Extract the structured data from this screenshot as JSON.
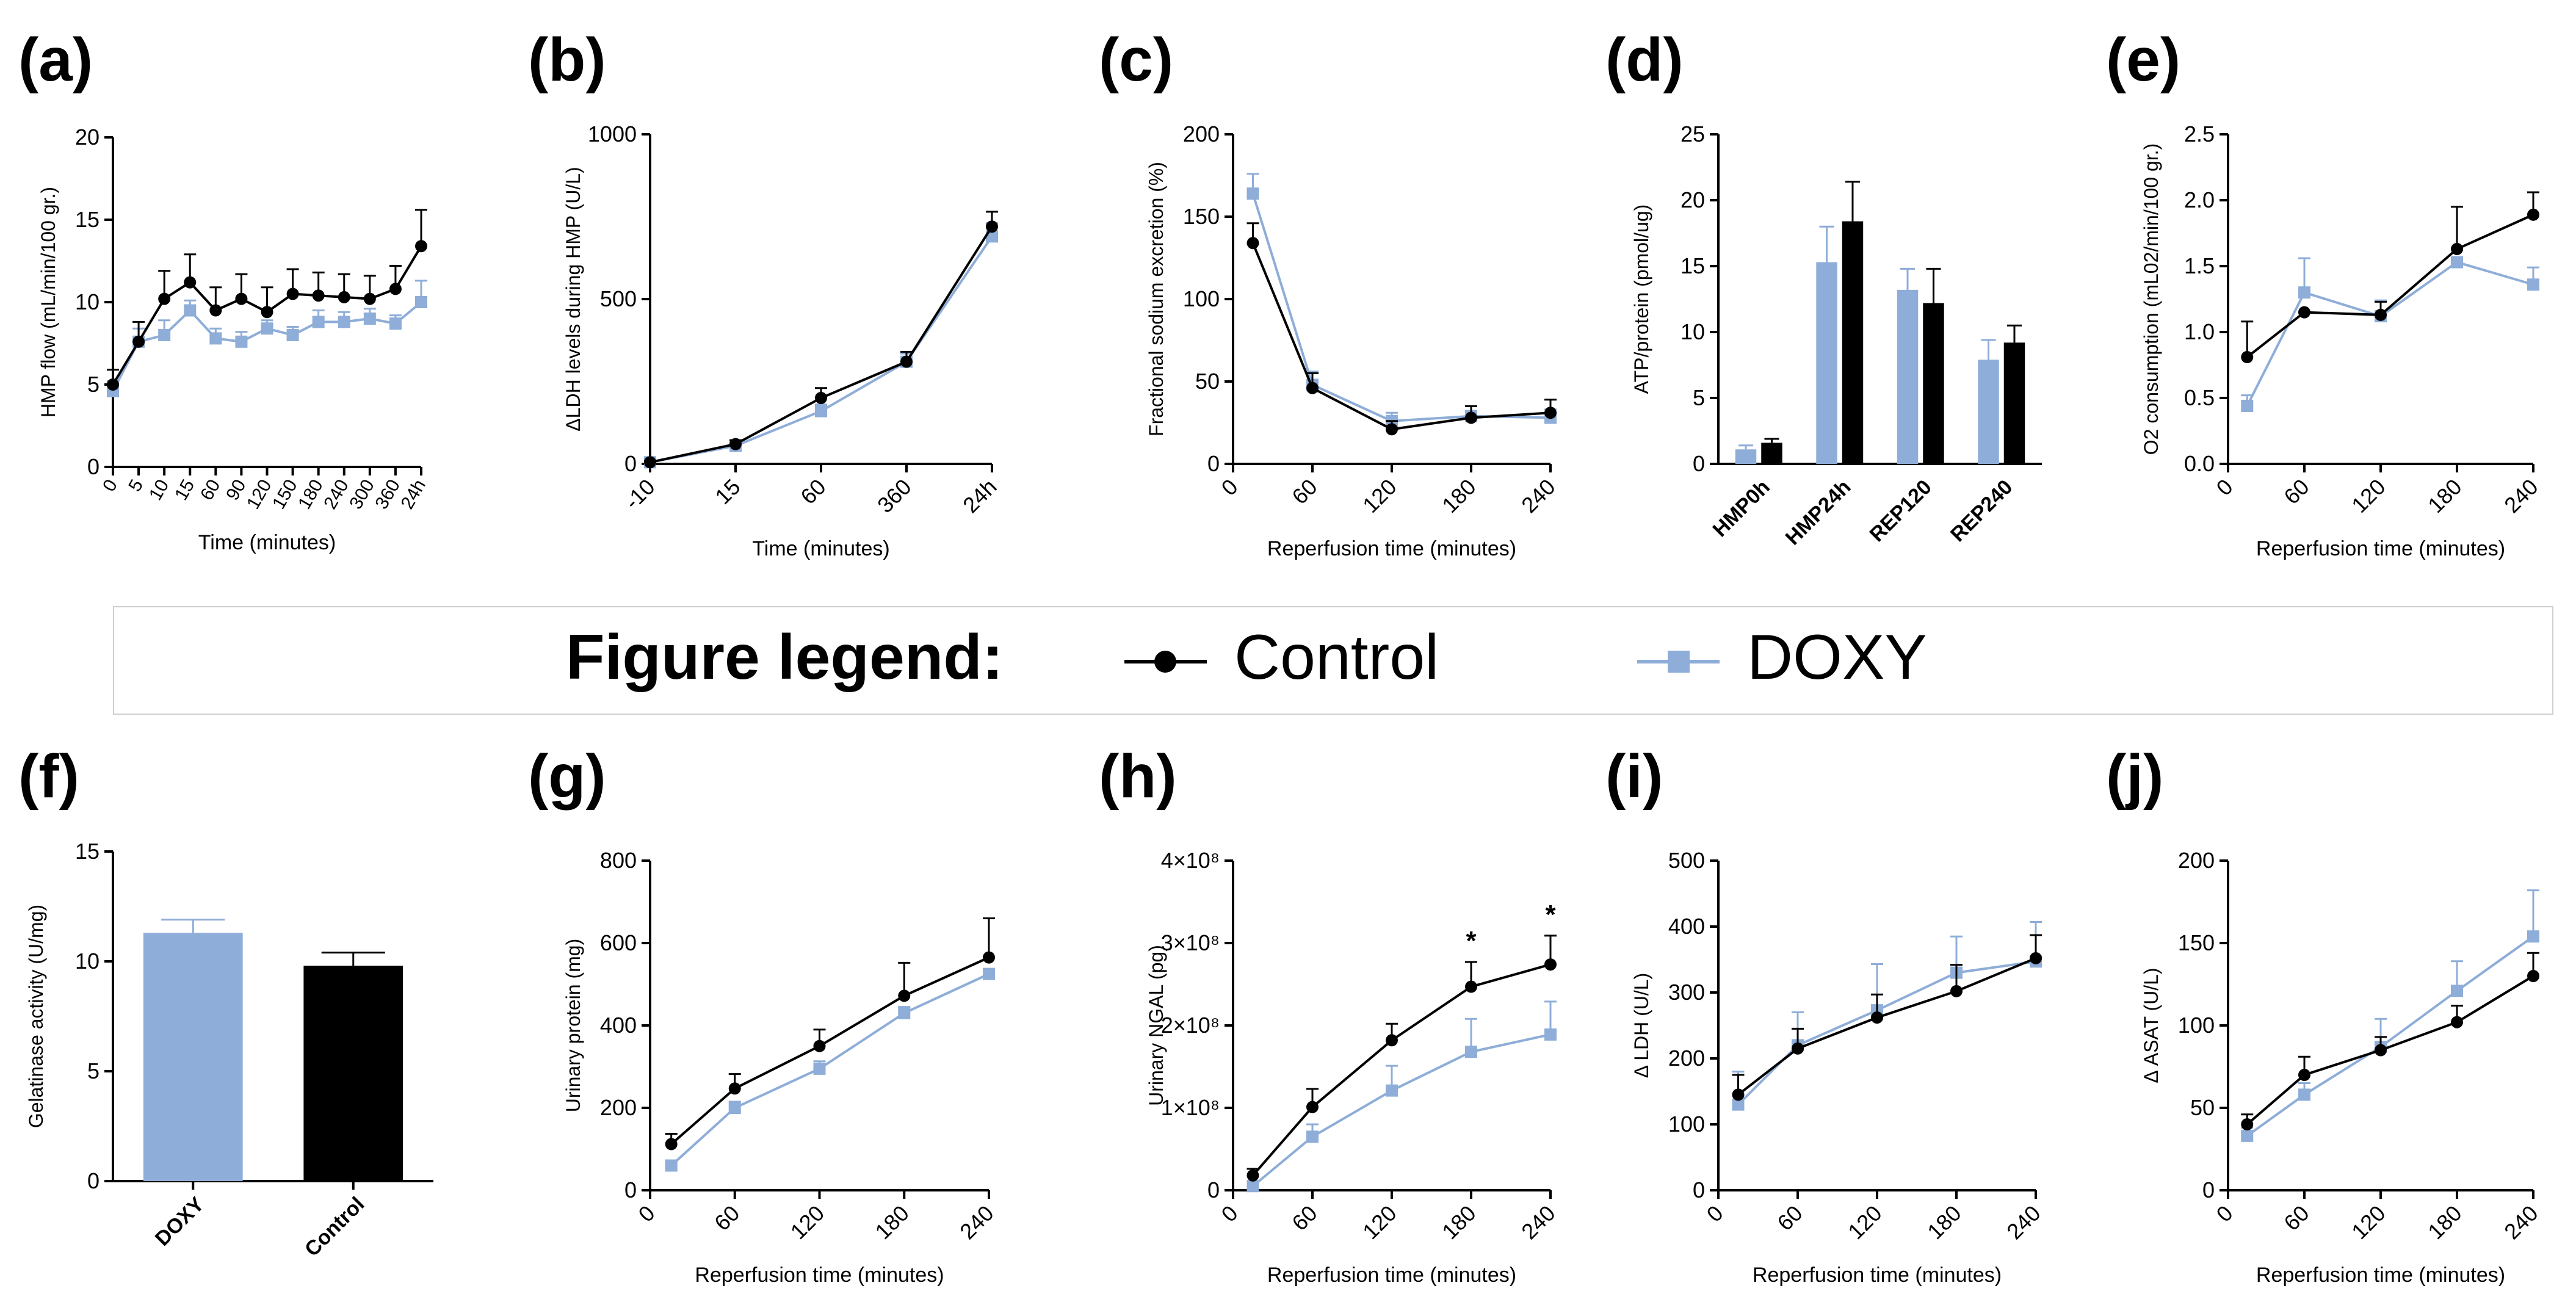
{
  "legend": {
    "title": "Figure legend:",
    "control_label": "Control",
    "doxy_label": "DOXY"
  },
  "colors": {
    "control": "#000000",
    "doxy": "#8eadd8"
  },
  "chart_data": [
    {
      "id": "a",
      "panel_label": "(a)",
      "type": "line",
      "title": "",
      "xlabel": "Time (minutes)",
      "ylabel": "HMP flow (mL/min/100 gr.)",
      "categories": [
        "0",
        "5",
        "10",
        "15",
        "60",
        "90",
        "120",
        "150",
        "180",
        "240",
        "300",
        "360",
        "24h"
      ],
      "ylim": [
        0,
        20
      ],
      "yticks": [
        0,
        5,
        10,
        15,
        20
      ],
      "series": [
        {
          "name": "Control",
          "values": [
            5.0,
            7.6,
            10.2,
            11.2,
            9.5,
            10.2,
            9.4,
            10.5,
            10.4,
            10.3,
            10.2,
            10.8,
            13.4
          ],
          "errors": [
            0.9,
            1.2,
            1.7,
            1.7,
            1.4,
            1.5,
            1.5,
            1.5,
            1.4,
            1.4,
            1.4,
            1.4,
            2.2
          ]
        },
        {
          "name": "DOXY",
          "values": [
            4.6,
            7.6,
            8.0,
            9.5,
            7.8,
            7.6,
            8.4,
            8.0,
            8.8,
            8.8,
            9.0,
            8.7,
            10.0
          ],
          "errors": [
            0.6,
            0.8,
            0.9,
            0.6,
            0.6,
            0.6,
            0.5,
            0.5,
            0.7,
            0.6,
            0.6,
            0.5,
            1.3
          ]
        }
      ]
    },
    {
      "id": "b",
      "panel_label": "(b)",
      "type": "line",
      "title": "",
      "xlabel": "Time (minutes)",
      "ylabel": "ΔLDH levels during HMP (U/L)",
      "categories": [
        "-10",
        "15",
        "60",
        "360",
        "24h"
      ],
      "ylim": [
        0,
        1000
      ],
      "yticks": [
        0,
        500,
        1000
      ],
      "series": [
        {
          "name": "Control",
          "values": [
            5,
            60,
            200,
            310,
            720
          ],
          "errors": [
            4,
            12,
            30,
            30,
            45
          ]
        },
        {
          "name": "DOXY",
          "values": [
            5,
            55,
            160,
            310,
            690
          ],
          "errors": [
            4,
            10,
            20,
            25,
            40
          ]
        }
      ]
    },
    {
      "id": "c",
      "panel_label": "(c)",
      "type": "line",
      "title": "",
      "xlabel": "Reperfusion time (minutes)",
      "ylabel": "Fractional sodium excretion (%)",
      "x": [
        15,
        60,
        120,
        180,
        240
      ],
      "xticks": [
        0,
        60,
        120,
        180,
        240
      ],
      "xlim": [
        0,
        240
      ],
      "ylim": [
        0,
        200
      ],
      "yticks": [
        0,
        50,
        100,
        150,
        200
      ],
      "series": [
        {
          "name": "Control",
          "values": [
            134,
            46,
            21,
            28,
            31
          ],
          "errors": [
            12,
            9,
            5,
            7,
            8
          ]
        },
        {
          "name": "DOXY",
          "values": [
            164,
            48,
            26,
            29,
            28
          ],
          "errors": [
            12,
            8,
            5,
            6,
            5
          ]
        }
      ]
    },
    {
      "id": "d",
      "panel_label": "(d)",
      "type": "bar",
      "title": "",
      "xlabel": "",
      "ylabel": "ATP/protein (pmol/ug)",
      "categories": [
        "HMP0h",
        "HMP24h",
        "REP120",
        "REP240"
      ],
      "ylim": [
        0,
        25
      ],
      "yticks": [
        0,
        5,
        10,
        15,
        20,
        25
      ],
      "series": [
        {
          "name": "DOXY",
          "values": [
            1.1,
            15.3,
            13.2,
            7.9
          ],
          "errors": [
            0.3,
            2.7,
            1.6,
            1.5
          ]
        },
        {
          "name": "Control",
          "values": [
            1.6,
            18.4,
            12.2,
            9.2
          ],
          "errors": [
            0.3,
            3.0,
            2.6,
            1.3
          ]
        }
      ]
    },
    {
      "id": "e",
      "panel_label": "(e)",
      "type": "line",
      "title": "",
      "xlabel": "Reperfusion time (minutes)",
      "ylabel": "O2 consumption (mL02/min/100 gr.)",
      "x": [
        15,
        60,
        120,
        180,
        240
      ],
      "xticks": [
        0,
        60,
        120,
        180,
        240
      ],
      "xlim": [
        0,
        240
      ],
      "ylim": [
        0,
        2.5
      ],
      "yticks": [
        "0.0",
        "0.5",
        "1.0",
        "1.5",
        "2.0",
        "2.5"
      ],
      "series": [
        {
          "name": "Control",
          "values": [
            0.81,
            1.15,
            1.13,
            1.63,
            1.89
          ],
          "errors": [
            0.27,
            0.0,
            0.1,
            0.32,
            0.17
          ]
        },
        {
          "name": "DOXY",
          "values": [
            0.44,
            1.3,
            1.12,
            1.53,
            1.36
          ],
          "errors": [
            0.08,
            0.26,
            0.12,
            0.0,
            0.13
          ]
        }
      ]
    },
    {
      "id": "f",
      "panel_label": "(f)",
      "type": "bar",
      "title": "",
      "xlabel": "",
      "ylabel": "Gelatinase activity (U/mg)",
      "categories": [
        "DOXY",
        "Control"
      ],
      "ylim": [
        0,
        15
      ],
      "yticks": [
        0,
        5,
        10,
        15
      ],
      "values": [
        11.3,
        9.8
      ],
      "errors": [
        0.6,
        0.6
      ]
    },
    {
      "id": "g",
      "panel_label": "(g)",
      "type": "line",
      "title": "",
      "xlabel": "Reperfusion time (minutes)",
      "ylabel": "Urinary protein (mg)",
      "x": [
        15,
        60,
        120,
        180,
        240
      ],
      "xticks": [
        0,
        60,
        120,
        180,
        240
      ],
      "xlim": [
        0,
        240
      ],
      "ylim": [
        0,
        800
      ],
      "yticks": [
        0,
        200,
        400,
        600,
        800
      ],
      "series": [
        {
          "name": "Control",
          "values": [
            112,
            247,
            350,
            472,
            565
          ],
          "errors": [
            25,
            35,
            40,
            80,
            95
          ]
        },
        {
          "name": "DOXY",
          "values": [
            60,
            200,
            295,
            430,
            525
          ],
          "errors": [
            10,
            15,
            18,
            15,
            10
          ]
        }
      ]
    },
    {
      "id": "h",
      "panel_label": "(h)",
      "type": "line",
      "title": "",
      "xlabel": "Reperfusion time (minutes)",
      "ylabel": "Urinary NGAL (pg)",
      "x": [
        15,
        60,
        120,
        180,
        240
      ],
      "xticks": [
        0,
        60,
        120,
        180,
        240
      ],
      "xlim": [
        0,
        240
      ],
      "ylim": [
        0,
        400000000
      ],
      "yticks": [
        "0",
        "1×10⁸",
        "2×10⁸",
        "3×10⁸",
        "4×10⁸"
      ],
      "annotations": [
        "*",
        "*"
      ],
      "series": [
        {
          "name": "Control",
          "values": [
            18000000,
            101000000,
            182000000,
            247000000,
            274000000
          ],
          "errors": [
            8000000,
            22000000,
            20000000,
            30000000,
            35000000
          ]
        },
        {
          "name": "DOXY",
          "values": [
            5000000,
            65000000,
            121000000,
            168000000,
            189000000
          ],
          "errors": [
            3000000,
            15000000,
            30000000,
            40000000,
            40000000
          ]
        }
      ]
    },
    {
      "id": "i",
      "panel_label": "(i)",
      "type": "line",
      "title": "",
      "xlabel": "Reperfusion time (minutes)",
      "ylabel": "Δ LDH (U/L)",
      "x": [
        15,
        60,
        120,
        180,
        240
      ],
      "xticks": [
        0,
        60,
        120,
        180,
        240
      ],
      "xlim": [
        0,
        240
      ],
      "ylim": [
        0,
        500
      ],
      "yticks": [
        0,
        100,
        200,
        300,
        400,
        500
      ],
      "series": [
        {
          "name": "Control",
          "values": [
            145,
            215,
            262,
            302,
            352
          ],
          "errors": [
            30,
            30,
            35,
            40,
            35
          ]
        },
        {
          "name": "DOXY",
          "values": [
            130,
            220,
            273,
            330,
            347
          ],
          "errors": [
            50,
            50,
            70,
            55,
            60
          ]
        }
      ]
    },
    {
      "id": "j",
      "panel_label": "(j)",
      "type": "line",
      "title": "",
      "xlabel": "Reperfusion time (minutes)",
      "ylabel": "Δ ASAT (U/L)",
      "x": [
        15,
        60,
        120,
        180,
        240
      ],
      "xticks": [
        0,
        60,
        120,
        180,
        240
      ],
      "xlim": [
        0,
        240
      ],
      "ylim": [
        0,
        200
      ],
      "yticks": [
        0,
        50,
        100,
        150,
        200
      ],
      "series": [
        {
          "name": "Control",
          "values": [
            40,
            70,
            85,
            102,
            130
          ],
          "errors": [
            6,
            11,
            8,
            10,
            14
          ]
        },
        {
          "name": "DOXY",
          "values": [
            33,
            58,
            87,
            121,
            154
          ],
          "errors": [
            5,
            7,
            17,
            18,
            28
          ]
        }
      ]
    }
  ]
}
